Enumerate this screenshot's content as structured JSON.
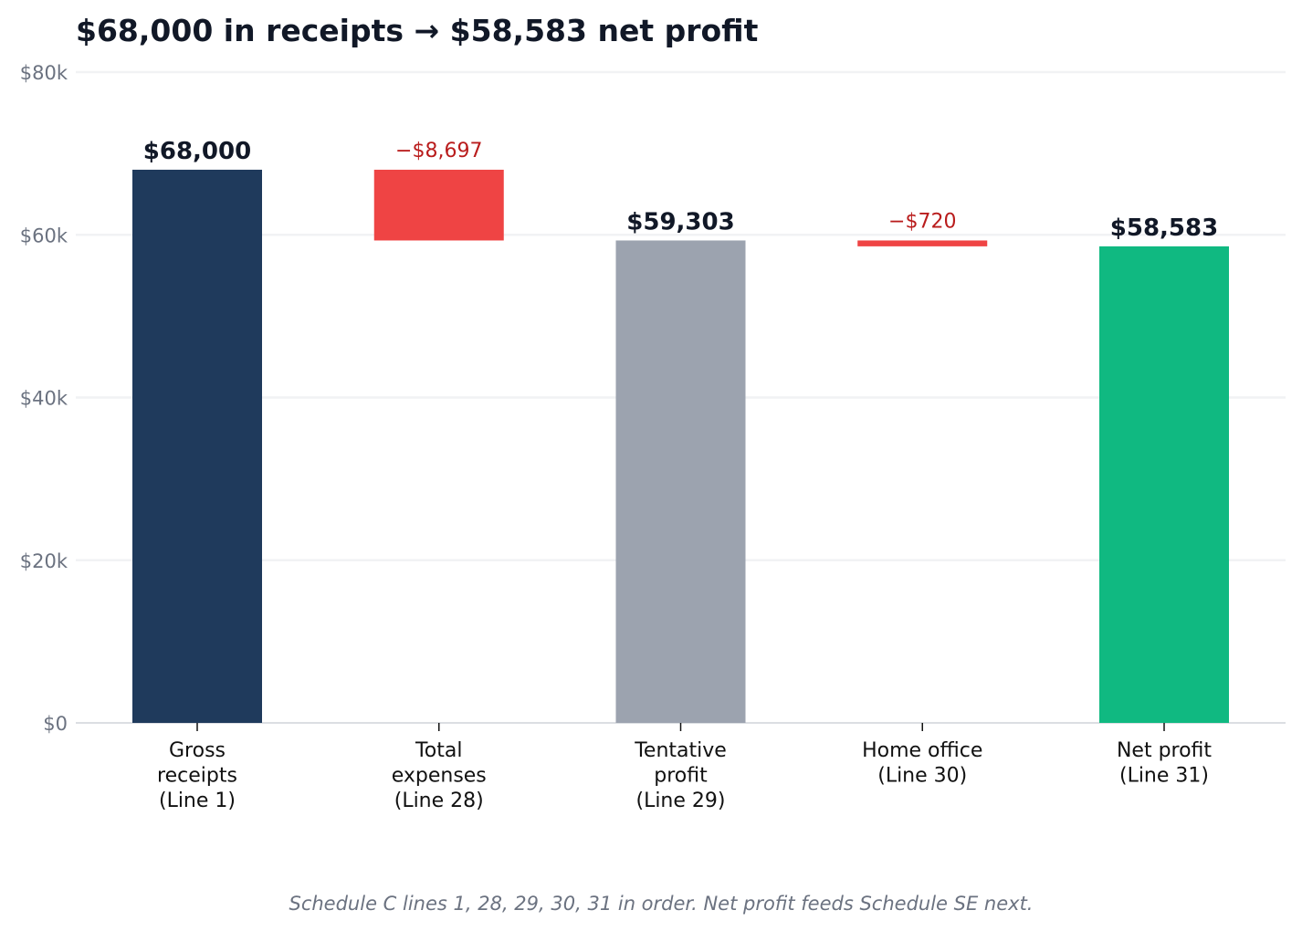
{
  "chart_data": {
    "type": "bar",
    "subtype": "waterfall",
    "title": "$68,000 in receipts → $58,583 net profit",
    "caption": "Schedule C lines 1, 28, 29, 30, 31 in order. Net profit feeds Schedule SE next.",
    "ylim": [
      0,
      80000
    ],
    "yticks": [
      {
        "value": 0,
        "label": "$0"
      },
      {
        "value": 20000,
        "label": "$20k"
      },
      {
        "value": 40000,
        "label": "$40k"
      },
      {
        "value": 60000,
        "label": "$60k"
      },
      {
        "value": 80000,
        "label": "$80k"
      }
    ],
    "grid": true,
    "legend": "none",
    "categories": [
      [
        "Gross",
        "receipts",
        "(Line 1)"
      ],
      [
        "Total",
        "expenses",
        "(Line 28)"
      ],
      [
        "Tentative",
        "profit",
        "(Line 29)"
      ],
      [
        "Home office",
        "(Line 30)"
      ],
      [
        "Net profit",
        "(Line 31)"
      ]
    ],
    "bars": [
      {
        "kind": "total",
        "from": 0,
        "to": 68000,
        "label": "$68,000",
        "color": "#1f3a5c"
      },
      {
        "kind": "decrease",
        "from": 59303,
        "to": 68000,
        "label": "−$8,697",
        "color": "#ef4444"
      },
      {
        "kind": "total",
        "from": 0,
        "to": 59303,
        "label": "$59,303",
        "color": "#9ca3af"
      },
      {
        "kind": "decrease",
        "from": 58583,
        "to": 59303,
        "label": "−$720",
        "color": "#ef4444"
      },
      {
        "kind": "total",
        "from": 0,
        "to": 58583,
        "label": "$58,583",
        "color": "#10b981"
      }
    ]
  }
}
